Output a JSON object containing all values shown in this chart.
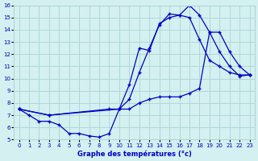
{
  "title": "Graphe des températures (°c)",
  "bg_color": "#d4f0f0",
  "grid_color": "#b0d8d8",
  "line_color": "#0000cc",
  "marker": "+",
  "ylim": [
    5,
    16
  ],
  "yticks": [
    5,
    6,
    7,
    8,
    9,
    10,
    11,
    12,
    13,
    14,
    15,
    16
  ],
  "xlim": [
    0,
    23
  ],
  "xticks": [
    0,
    1,
    2,
    3,
    4,
    5,
    6,
    7,
    8,
    9,
    10,
    11,
    12,
    13,
    14,
    15,
    16,
    17,
    18,
    19,
    20,
    21,
    22,
    23
  ],
  "line1_x": [
    0,
    1,
    2,
    3,
    4,
    5,
    6,
    7,
    8,
    9,
    10,
    11,
    12,
    13,
    14,
    15,
    16,
    17,
    18,
    19,
    20,
    21,
    22,
    23
  ],
  "line1_y": [
    7.5,
    7.0,
    6.5,
    6.5,
    6.2,
    5.5,
    5.5,
    5.3,
    5.2,
    5.5,
    7.5,
    9.5,
    12.5,
    12.3,
    14.5,
    15.0,
    15.2,
    16.0,
    15.2,
    13.8,
    12.2,
    11.0,
    10.2,
    10.3
  ],
  "line2_x": [
    0,
    3,
    10,
    11,
    12,
    13,
    14,
    15,
    16,
    17,
    18,
    19,
    20,
    21,
    22,
    23
  ],
  "line2_y": [
    7.5,
    7.0,
    7.5,
    8.3,
    10.5,
    12.5,
    14.4,
    15.3,
    15.2,
    15.0,
    13.2,
    11.5,
    11.0,
    10.5,
    10.3,
    10.3
  ],
  "line3_x": [
    0,
    3,
    9,
    10,
    11,
    12,
    13,
    14,
    15,
    16,
    17,
    18,
    19,
    20,
    21,
    22,
    23
  ],
  "line3_y": [
    7.5,
    7.0,
    7.5,
    7.5,
    7.5,
    8.0,
    8.3,
    8.5,
    8.5,
    8.5,
    8.8,
    9.2,
    13.8,
    13.8,
    12.2,
    11.0,
    10.3
  ]
}
